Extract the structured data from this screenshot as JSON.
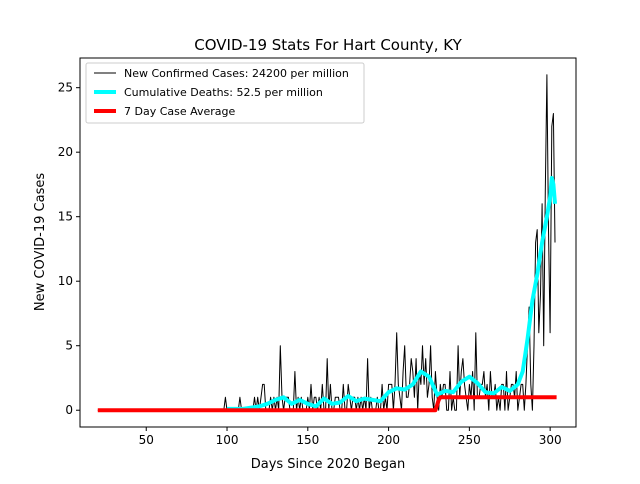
{
  "chart_data": {
    "type": "line",
    "title": "COVID-19 Stats For Hart County, KY",
    "xlabel": "Days Since 2020 Began",
    "ylabel": "New COVID-19 Cases",
    "xlim": [
      9,
      316
    ],
    "ylim": [
      -1.3,
      27.3
    ],
    "xticks": [
      50,
      100,
      150,
      200,
      250,
      300
    ],
    "yticks": [
      0,
      5,
      10,
      15,
      20,
      25
    ],
    "legend_position": "top-left",
    "grid": false,
    "series": [
      {
        "name": "New Confirmed Cases: 24200 per million",
        "color": "#000000",
        "x": [
          20,
          98,
          99,
          100,
          101,
          107,
          108,
          109,
          110,
          115,
          116,
          117,
          118,
          119,
          120,
          121,
          122,
          123,
          124,
          125,
          126,
          127,
          128,
          129,
          130,
          131,
          132,
          133,
          134,
          135,
          136,
          137,
          138,
          139,
          140,
          141,
          142,
          143,
          144,
          145,
          146,
          147,
          148,
          149,
          150,
          151,
          152,
          153,
          154,
          155,
          156,
          157,
          158,
          159,
          160,
          161,
          162,
          163,
          164,
          165,
          166,
          167,
          168,
          169,
          170,
          171,
          172,
          173,
          174,
          175,
          176,
          177,
          178,
          179,
          180,
          181,
          182,
          183,
          184,
          185,
          186,
          187,
          188,
          189,
          190,
          191,
          192,
          193,
          194,
          195,
          196,
          197,
          198,
          199,
          200,
          201,
          202,
          203,
          204,
          205,
          206,
          207,
          208,
          209,
          210,
          211,
          212,
          213,
          214,
          215,
          216,
          217,
          218,
          219,
          220,
          221,
          222,
          223,
          224,
          225,
          226,
          227,
          228,
          229,
          230,
          231,
          232,
          233,
          234,
          235,
          236,
          237,
          238,
          239,
          240,
          241,
          242,
          243,
          244,
          245,
          246,
          247,
          248,
          249,
          250,
          251,
          252,
          253,
          254,
          255,
          256,
          257,
          258,
          259,
          260,
          261,
          262,
          263,
          264,
          265,
          266,
          267,
          268,
          269,
          270,
          271,
          272,
          273,
          274,
          275,
          276,
          277,
          278,
          279,
          280,
          281,
          282,
          283,
          284,
          285,
          286,
          287,
          288,
          289,
          290,
          291,
          292,
          293,
          294,
          295,
          296,
          297,
          298,
          299,
          300,
          301,
          302,
          303
        ],
        "y": [
          0,
          0,
          1,
          0,
          0,
          0,
          1,
          0,
          0,
          0,
          0,
          1,
          0,
          1,
          0,
          1,
          2,
          2,
          0,
          0,
          0,
          1,
          0,
          1,
          0,
          1,
          0,
          5,
          1,
          0,
          1,
          1,
          1,
          0,
          0,
          0,
          3,
          0,
          1,
          0,
          1,
          0,
          0,
          0,
          1,
          0,
          2,
          0,
          1,
          1,
          0,
          1,
          0,
          2,
          0,
          0,
          4,
          0,
          2,
          0,
          0,
          1,
          1,
          1,
          0,
          0,
          2,
          0,
          0,
          2,
          1,
          0,
          1,
          1,
          0,
          1,
          0,
          1,
          0,
          1,
          0,
          4,
          0,
          1,
          0,
          0,
          0,
          1,
          0,
          0,
          2,
          0,
          1,
          0,
          2,
          2,
          2,
          0,
          2,
          6,
          2,
          1,
          0,
          3,
          5,
          1,
          1,
          2,
          4,
          3,
          1,
          4,
          0,
          3,
          2,
          5,
          2,
          4,
          1,
          2,
          5,
          1,
          0,
          3,
          1,
          0,
          2,
          1,
          2,
          2,
          0,
          0,
          3,
          0,
          1,
          0,
          0,
          5,
          1,
          3,
          4,
          2,
          1,
          0,
          2,
          1,
          3,
          0,
          6,
          1,
          1,
          2,
          2,
          3,
          1,
          2,
          0,
          3,
          1,
          1,
          2,
          0,
          1,
          0,
          2,
          2,
          0,
          3,
          0,
          1,
          2,
          2,
          1,
          3,
          0,
          1,
          2,
          2,
          0,
          2,
          5,
          8,
          2,
          0,
          5,
          13,
          14,
          6,
          9,
          16,
          5,
          17,
          26,
          14,
          6,
          22,
          23,
          13
        ],
        "width": 1.0
      },
      {
        "name": "Cumulative Deaths: 52.5 per million",
        "color": "#00ffff",
        "x": [
          100,
          110,
          115,
          120,
          125,
          130,
          135,
          140,
          145,
          150,
          155,
          160,
          165,
          170,
          175,
          180,
          185,
          190,
          195,
          200,
          205,
          210,
          215,
          220,
          225,
          230,
          235,
          240,
          245,
          250,
          255,
          260,
          265,
          270,
          275,
          280,
          283,
          286,
          289,
          292,
          295,
          298,
          300,
          301,
          302,
          303
        ],
        "y": [
          0.1,
          0.1,
          0.2,
          0.3,
          0.5,
          0.8,
          1.0,
          0.5,
          0.8,
          0.5,
          0.3,
          0.9,
          0.5,
          0.6,
          1.1,
          0.7,
          0.9,
          0.8,
          0.7,
          1.4,
          1.7,
          1.6,
          2.0,
          3.0,
          2.6,
          1.2,
          1.5,
          1.4,
          2.2,
          2.6,
          2.1,
          1.4,
          1.3,
          1.8,
          1.5,
          2.0,
          3.0,
          5.5,
          8.5,
          10.5,
          13.0,
          15.0,
          16.5,
          18.0,
          17.5,
          16.0
        ],
        "width": 4
      },
      {
        "name": "7 Day Case Average",
        "color": "#ff0000",
        "x": [
          20,
          229,
          230,
          231,
          232,
          304
        ],
        "y": [
          0,
          0,
          0.4,
          0.8,
          1.0,
          1.0
        ],
        "width": 4
      }
    ]
  }
}
